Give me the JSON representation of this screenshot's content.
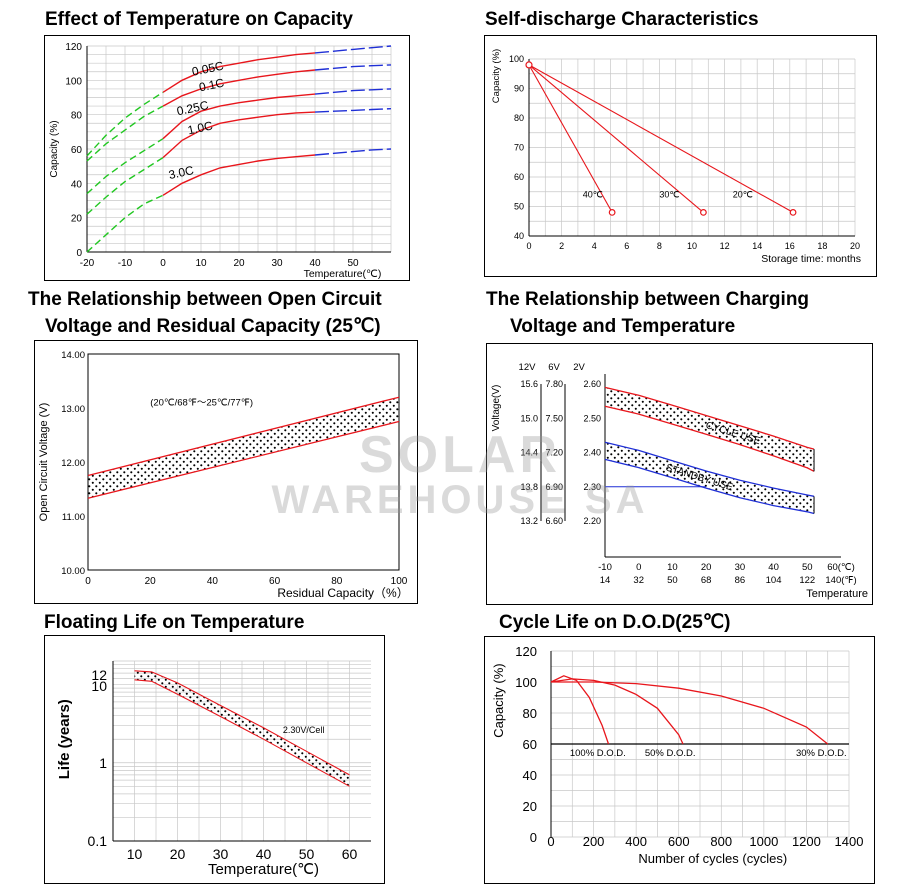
{
  "titles": {
    "c1": "Effect of Temperature on Capacity",
    "c2": "Self-discharge Characteristics",
    "c3a": "The Relationship between Open Circuit",
    "c3b": "Voltage and Residual Capacity (25℃)",
    "c4a": "The Relationship between Charging",
    "c4b": "Voltage and Temperature",
    "c5": "Floating Life on Temperature",
    "c6": "Cycle Life on D.O.D(25℃)"
  },
  "watermark": {
    "line1": "SOLAR",
    "line2": "WAREHOUSE SA"
  },
  "colors": {
    "red": "#e8161c",
    "green": "#22c722",
    "blue": "#1f2fd6",
    "grid": "#c8c8c8",
    "dot": "#000000"
  },
  "chart_data": [
    {
      "id": "c1",
      "type": "line",
      "xlabel": "Temperature(℃)",
      "ylabel": "Capacity (%)",
      "xlim": [
        -20,
        60
      ],
      "ylim": [
        0,
        120
      ],
      "xticks": [
        "-20",
        "-10",
        "0",
        "10",
        "20",
        "30",
        "40",
        "50"
      ],
      "yticks": [
        "0",
        "20",
        "40",
        "60",
        "80",
        "100",
        "120"
      ],
      "grid": true,
      "segments": {
        "green_dashed_x": [
          -20,
          0
        ],
        "red_solid_x": [
          0,
          40
        ],
        "blue_dashed_x": [
          40,
          60
        ]
      },
      "series": [
        {
          "name": "0.05C",
          "x": [
            -20,
            -15,
            -10,
            -5,
            0,
            5,
            10,
            15,
            20,
            25,
            30,
            35,
            40,
            45,
            50,
            55,
            60
          ],
          "values": [
            56,
            68,
            78,
            86,
            93,
            100,
            105,
            108,
            110,
            112,
            113.5,
            115,
            116,
            117,
            118,
            119,
            120
          ]
        },
        {
          "name": "0.1C",
          "x": [
            -20,
            -15,
            -10,
            -5,
            0,
            5,
            10,
            15,
            20,
            25,
            30,
            35,
            40,
            45,
            50,
            55,
            60
          ],
          "values": [
            53,
            63,
            71,
            79,
            85,
            91,
            95,
            98,
            100,
            102,
            103.5,
            105,
            106,
            107,
            108,
            108.5,
            109
          ]
        },
        {
          "name": "0.25C",
          "x": [
            -20,
            -15,
            -10,
            -5,
            0,
            5,
            10,
            15,
            20,
            25,
            30,
            35,
            40,
            45,
            50,
            55,
            60
          ],
          "values": [
            34,
            44,
            52,
            59,
            66,
            76,
            82,
            85,
            87,
            88.5,
            90,
            91,
            92,
            93,
            94,
            94.5,
            95
          ]
        },
        {
          "name": "1.0C",
          "x": [
            -20,
            -15,
            -10,
            -5,
            0,
            5,
            10,
            15,
            20,
            25,
            30,
            35,
            40,
            45,
            50,
            55,
            60
          ],
          "values": [
            22,
            32,
            41,
            48,
            55,
            65,
            71,
            75,
            77,
            78.5,
            80,
            81,
            81.5,
            82,
            82.5,
            83,
            83.5
          ]
        },
        {
          "name": "3.0C",
          "x": [
            -20,
            -15,
            -10,
            -5,
            0,
            5,
            10,
            15,
            20,
            25,
            30,
            35,
            40,
            45,
            50,
            55,
            60
          ],
          "values": [
            0,
            10,
            20,
            28,
            33,
            40,
            45,
            49,
            51,
            53,
            54.5,
            55.5,
            56.5,
            57.5,
            58.5,
            59.5,
            60
          ]
        }
      ]
    },
    {
      "id": "c2",
      "type": "line",
      "xlabel": "Storage time: months",
      "ylabel": "Capacity (%)",
      "xlim": [
        0,
        20
      ],
      "ylim": [
        40,
        100
      ],
      "xticks": [
        "0",
        "2",
        "4",
        "6",
        "8",
        "10",
        "12",
        "14",
        "16",
        "18",
        "20"
      ],
      "yticks": [
        "40",
        "50",
        "60",
        "70",
        "80",
        "90",
        "100"
      ],
      "grid": true,
      "series": [
        {
          "name": "40℃",
          "x": [
            0,
            5.1
          ],
          "values": [
            98,
            48
          ]
        },
        {
          "name": "30℃",
          "x": [
            0,
            10.7
          ],
          "values": [
            98,
            48
          ]
        },
        {
          "name": "20℃",
          "x": [
            0,
            16.2
          ],
          "values": [
            98,
            48
          ]
        }
      ]
    },
    {
      "id": "c3",
      "type": "area",
      "xlabel": "Residual Capacity（%）",
      "ylabel": "Open Circuit Voltage (V)",
      "xlim": [
        0,
        100
      ],
      "ylim": [
        10.0,
        14.0
      ],
      "xticks": [
        "0",
        "20",
        "40",
        "60",
        "80",
        "100"
      ],
      "yticks": [
        "10.00",
        "11.00",
        "12.00",
        "13.00",
        "14.00"
      ],
      "grid": false,
      "annotation": "(20℃/68℉～25℃/77℉)",
      "band": {
        "x": [
          0,
          100
        ],
        "upper": [
          11.75,
          13.2
        ],
        "lower": [
          11.33,
          12.75
        ]
      }
    },
    {
      "id": "c4",
      "type": "area",
      "xlabel": "Temperature",
      "ylabel": "Voltage(V)",
      "xlim": [
        -10,
        60
      ],
      "ylim": [
        2.2,
        2.6
      ],
      "axis_heads": [
        "12V",
        "6V",
        "2V"
      ],
      "yticks_12v": [
        "13.2",
        "13.8",
        "14.4",
        "15.0",
        "15.6"
      ],
      "yticks_6v": [
        "6.60",
        "6.90",
        "7.20",
        "7.50",
        "7.80"
      ],
      "yticks_2v": [
        "2.20",
        "2.30",
        "2.40",
        "2.50",
        "2.60"
      ],
      "xticks_c": [
        "-10",
        "0",
        "10",
        "20",
        "30",
        "40",
        "50",
        "60(℃)"
      ],
      "xticks_f": [
        "14",
        "32",
        "50",
        "68",
        "86",
        "104",
        "122",
        "140(℉)"
      ],
      "bands": [
        {
          "name": "CYCLE USE",
          "x": [
            -10,
            0,
            10,
            20,
            30,
            40,
            50,
            52
          ],
          "upper": [
            2.59,
            2.567,
            2.538,
            2.508,
            2.478,
            2.448,
            2.415,
            2.41
          ],
          "lower": [
            2.535,
            2.512,
            2.483,
            2.453,
            2.423,
            2.39,
            2.355,
            2.345
          ]
        },
        {
          "name": "STANDBY USE",
          "x": [
            -10,
            0,
            10,
            20,
            30,
            40,
            50,
            52
          ],
          "upper": [
            2.43,
            2.406,
            2.376,
            2.346,
            2.319,
            2.296,
            2.276,
            2.272
          ],
          "lower": [
            2.38,
            2.356,
            2.326,
            2.296,
            2.268,
            2.245,
            2.227,
            2.222
          ]
        }
      ]
    },
    {
      "id": "c5",
      "type": "area",
      "xlabel": "Temperature(℃)",
      "ylabel": "Life (years)",
      "xlim": [
        5,
        65
      ],
      "ylim": [
        0.1,
        20
      ],
      "yscale": "log",
      "xticks": [
        "10",
        "20",
        "30",
        "40",
        "50",
        "60"
      ],
      "yticks": [
        "0.1",
        "1",
        "10",
        "12"
      ],
      "grid": true,
      "annotation": "2.30V/Cell",
      "band": {
        "x": [
          10,
          14,
          20,
          30,
          40,
          50,
          60
        ],
        "upper": [
          15,
          14.5,
          10.5,
          5.4,
          2.8,
          1.4,
          0.7
        ],
        "lower": [
          11.5,
          11,
          7.5,
          3.9,
          2.0,
          1.0,
          0.5
        ]
      }
    },
    {
      "id": "c6",
      "type": "line",
      "xlabel": "Number of cycles (cycles)",
      "ylabel": "Capacity (%)",
      "xlim": [
        0,
        1400
      ],
      "ylim": [
        0,
        120
      ],
      "xticks": [
        "0",
        "200",
        "400",
        "600",
        "800",
        "1000",
        "1200",
        "1400"
      ],
      "yticks": [
        "0",
        "20",
        "40",
        "60",
        "80",
        "100",
        "120"
      ],
      "grid": true,
      "series": [
        {
          "name": "100% D.O.D.",
          "x": [
            0,
            60,
            120,
            180,
            240,
            270
          ],
          "values": [
            100,
            104,
            101,
            90,
            72,
            60
          ]
        },
        {
          "name": "50% D.O.D.",
          "x": [
            0,
            100,
            200,
            300,
            400,
            500,
            600,
            620
          ],
          "values": [
            100,
            102,
            101,
            98,
            92,
            83,
            66,
            60
          ]
        },
        {
          "name": "30% D.O.D.",
          "x": [
            0,
            200,
            400,
            600,
            800,
            1000,
            1200,
            1300
          ],
          "values": [
            100,
            100,
            99,
            96,
            91,
            83,
            71,
            60
          ]
        }
      ]
    }
  ]
}
